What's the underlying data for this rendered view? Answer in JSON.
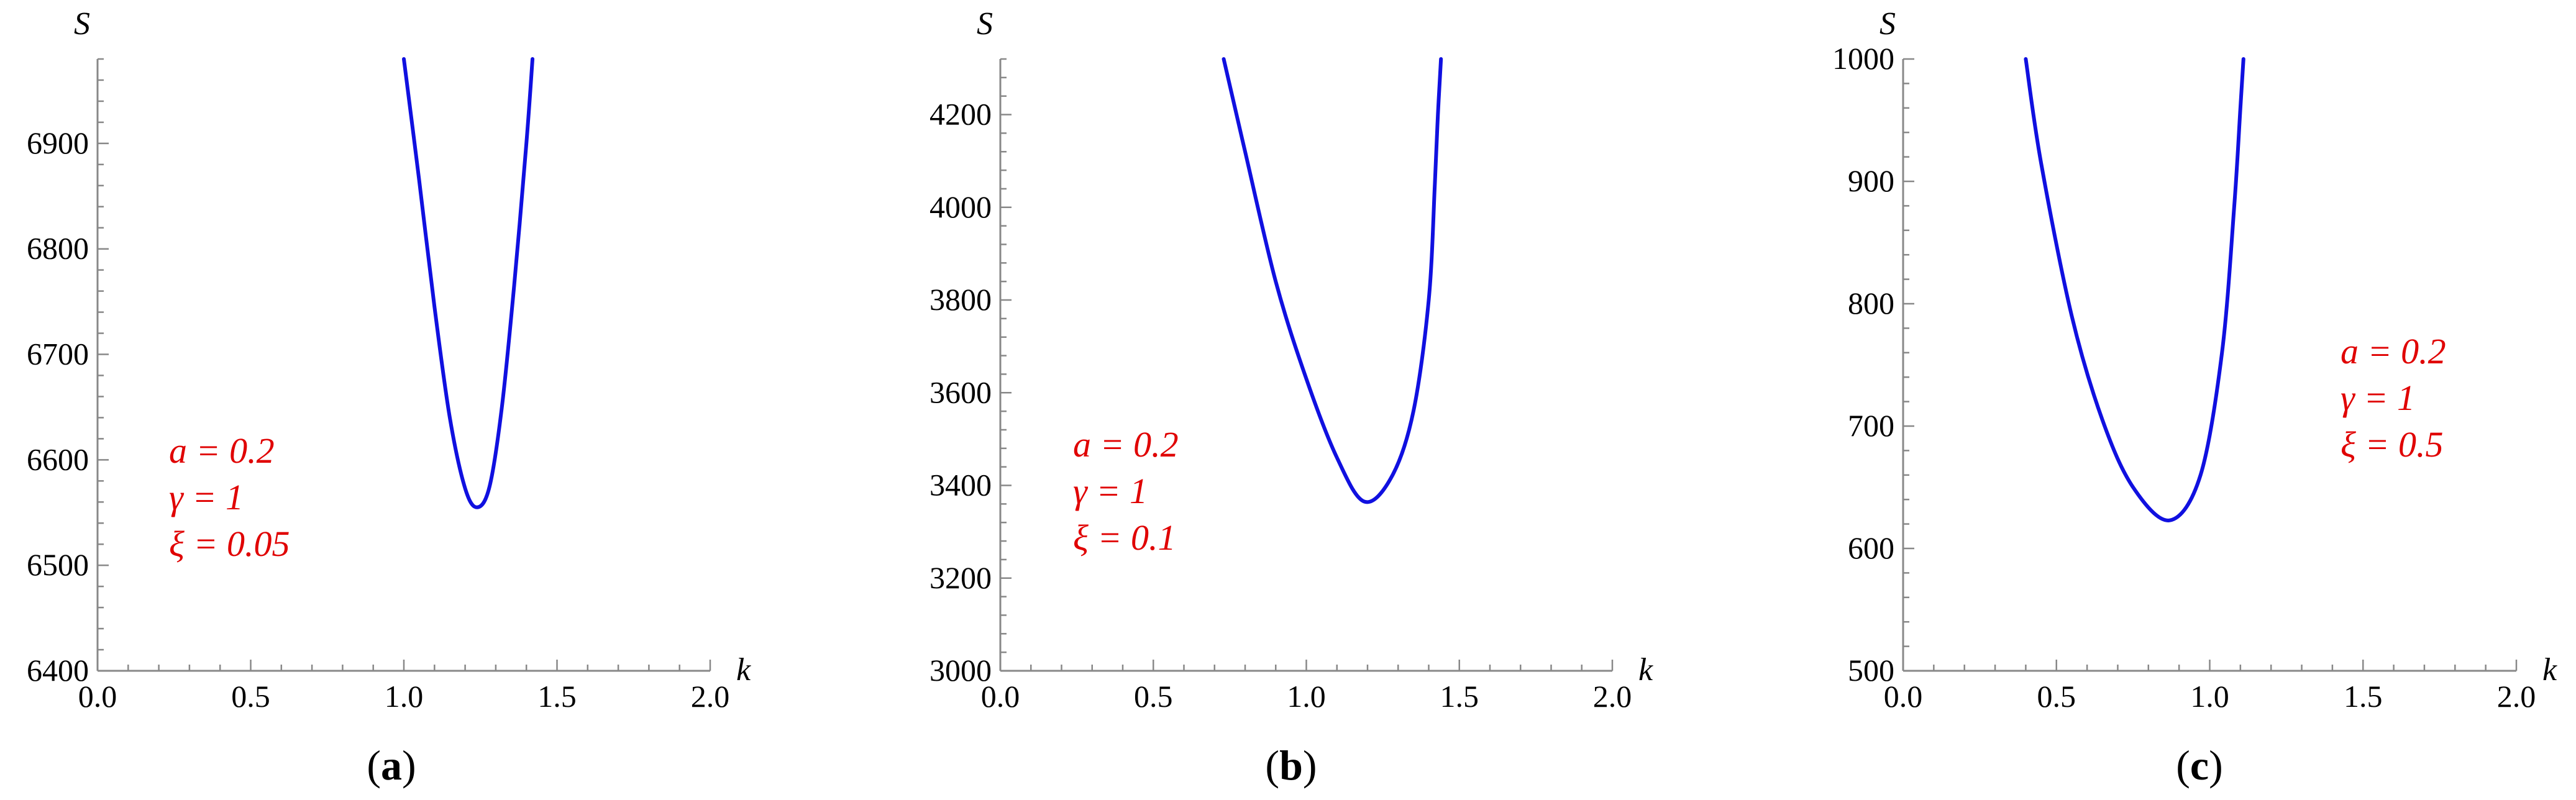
{
  "chart_data": [
    {
      "type": "line",
      "panel_label": "a",
      "xlabel": "k",
      "ylabel": "S",
      "xlim": [
        0.0,
        2.0
      ],
      "ylim": [
        6400,
        6980
      ],
      "x_ticks": [
        "0.0",
        "0.5",
        "1.0",
        "1.5",
        "2.0"
      ],
      "y_ticks": [
        6400,
        6500,
        6600,
        6700,
        6800,
        6900
      ],
      "line_color": "#1010e0",
      "annotation_color": "#e00000",
      "annotations": [
        "a = 0.2",
        "γ = 1",
        "ξ = 0.05"
      ],
      "series": [
        {
          "x": [
            1.0,
            1.05,
            1.1,
            1.15,
            1.2,
            1.24,
            1.28,
            1.32,
            1.36,
            1.4,
            1.42
          ],
          "y": [
            6980,
            6865,
            6745,
            6640,
            6573,
            6555,
            6575,
            6650,
            6765,
            6900,
            6980
          ]
        }
      ]
    },
    {
      "type": "line",
      "panel_label": "b",
      "xlabel": "k",
      "ylabel": "S",
      "xlim": [
        0.0,
        2.0
      ],
      "ylim": [
        3000,
        4320
      ],
      "x_ticks": [
        "0.0",
        "0.5",
        "1.0",
        "1.5",
        "2.0"
      ],
      "y_ticks": [
        3000,
        3200,
        3400,
        3600,
        3800,
        4000,
        4200
      ],
      "line_color": "#1010e0",
      "annotation_color": "#e00000",
      "annotations": [
        "a = 0.2",
        "γ = 1",
        "ξ = 0.1"
      ],
      "series": [
        {
          "x": [
            0.73,
            0.8,
            0.9,
            1.0,
            1.1,
            1.19,
            1.28,
            1.35,
            1.4,
            1.42,
            1.43,
            1.44
          ],
          "y": [
            4320,
            4120,
            3840,
            3630,
            3460,
            3365,
            3420,
            3560,
            3800,
            4050,
            4200,
            4320
          ]
        }
      ]
    },
    {
      "type": "line",
      "panel_label": "c",
      "xlabel": "k",
      "ylabel": "S",
      "xlim": [
        0.0,
        2.0
      ],
      "ylim": [
        500,
        1000
      ],
      "x_ticks": [
        "0.0",
        "0.5",
        "1.0",
        "1.5",
        "2.0"
      ],
      "y_ticks": [
        500,
        600,
        700,
        800,
        900,
        1000
      ],
      "line_color": "#1010e0",
      "annotation_color": "#e00000",
      "annotations": [
        "a = 0.2",
        "γ = 1",
        "ξ = 0.5"
      ],
      "series": [
        {
          "x": [
            0.4,
            0.45,
            0.55,
            0.65,
            0.75,
            0.87,
            0.97,
            1.04,
            1.08,
            1.1,
            1.11
          ],
          "y": [
            1000,
            915,
            790,
            705,
            650,
            623,
            660,
            760,
            880,
            960,
            1000
          ]
        }
      ]
    }
  ]
}
